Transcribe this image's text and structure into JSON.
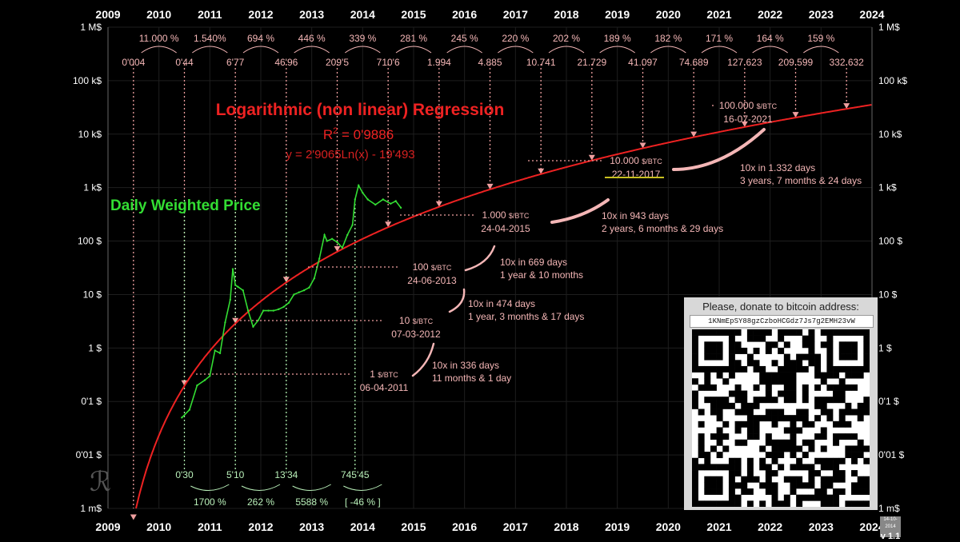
{
  "chart_data": {
    "type": "line",
    "xlim": [
      2009,
      2024
    ],
    "ylim_log10": [
      -3,
      6
    ],
    "log_scale_y": true,
    "grid": true,
    "x_tick_labels": [
      "2009",
      "2010",
      "2011",
      "2012",
      "2013",
      "2014",
      "2015",
      "2016",
      "2017",
      "2018",
      "2019",
      "2020",
      "2021",
      "2022",
      "2023",
      "2024"
    ],
    "y_tick_labels": [
      "1 M$",
      "100 k$",
      "10 k$",
      "1 k$",
      "100 $",
      "10 $",
      "1 $",
      "0'1 $",
      "0'01 $",
      "1 m$"
    ],
    "title": "Logarithmic (non linear) Regression",
    "r_squared_label": "R² = 0'9886",
    "r_squared_prefix": "R",
    "r_squared_sup": "2",
    "r_squared_value": " = 0'9886",
    "formula": "y = 2'9065Ln(x) - 19'493",
    "series": [
      {
        "name": "Daily Weighted Price",
        "color": "#33dd33",
        "points": [
          [
            2010.45,
            0.05
          ],
          [
            2010.6,
            0.07
          ],
          [
            2010.75,
            0.2
          ],
          [
            2010.9,
            0.25
          ],
          [
            2011.0,
            0.3
          ],
          [
            2011.1,
            0.9
          ],
          [
            2011.2,
            0.8
          ],
          [
            2011.3,
            3
          ],
          [
            2011.4,
            8
          ],
          [
            2011.45,
            30
          ],
          [
            2011.5,
            15
          ],
          [
            2011.55,
            14
          ],
          [
            2011.65,
            12
          ],
          [
            2011.75,
            5
          ],
          [
            2011.85,
            2.5
          ],
          [
            2011.95,
            3.3
          ],
          [
            2012.05,
            5
          ],
          [
            2012.15,
            5
          ],
          [
            2012.25,
            5
          ],
          [
            2012.35,
            5.3
          ],
          [
            2012.45,
            5.9
          ],
          [
            2012.55,
            7
          ],
          [
            2012.65,
            10
          ],
          [
            2012.75,
            11
          ],
          [
            2012.85,
            12
          ],
          [
            2012.95,
            13.5
          ],
          [
            2013.05,
            20
          ],
          [
            2013.15,
            47
          ],
          [
            2013.25,
            130
          ],
          [
            2013.3,
            100
          ],
          [
            2013.4,
            110
          ],
          [
            2013.5,
            95
          ],
          [
            2013.6,
            75
          ],
          [
            2013.7,
            130
          ],
          [
            2013.8,
            200
          ],
          [
            2013.85,
            600
          ],
          [
            2013.92,
            1100
          ],
          [
            2014.0,
            800
          ],
          [
            2014.1,
            600
          ],
          [
            2014.25,
            480
          ],
          [
            2014.4,
            600
          ],
          [
            2014.55,
            500
          ],
          [
            2014.65,
            560
          ],
          [
            2014.75,
            420
          ]
        ]
      },
      {
        "name": "Logarithmic regression",
        "color": "#ee2222"
      }
    ]
  },
  "top_growth": {
    "percentages": [
      "11.000 %",
      "1.540%",
      "694 %",
      "446 %",
      "339 %",
      "281 %",
      "245 %",
      "220 %",
      "202 %",
      "189 %",
      "182 %",
      "171 %",
      "164 %",
      "159 %"
    ],
    "values": [
      "0'004",
      "0'44",
      "6'77",
      "46'96",
      "209'5",
      "710'6",
      "1.994",
      "4.885",
      "10.741",
      "21.729",
      "41.097",
      "74.689",
      "127.623",
      "209.599",
      "332.632"
    ]
  },
  "bottom_growth": {
    "values": [
      "0'30",
      "5'10",
      "13'34",
      "745'45"
    ],
    "percentages": [
      "1700 %",
      "262 %",
      "5588 %",
      "[ -46 % ]"
    ]
  },
  "series_label": "Daily Weighted Price",
  "milestones": [
    {
      "price_num": "1",
      "unit": "$/BTC",
      "date": "06-04-2011"
    },
    {
      "price_num": "10",
      "unit": "$/BTC",
      "date": "07-03-2012"
    },
    {
      "price_num": "100",
      "unit": "$/BTC",
      "date": "24-06-2013"
    },
    {
      "price_num": "1.000",
      "unit": "$/BTC",
      "date": "24-04-2015"
    },
    {
      "price_num": "10.000",
      "unit": "$/BTC",
      "date": "22-11-2017"
    },
    {
      "price_num": "100.000",
      "unit": "$/BTC",
      "date": "16-07-2021"
    }
  ],
  "intervals": [
    {
      "days": "10x in 336 days",
      "detail": "11 months & 1 day"
    },
    {
      "days": "10x in 474 days",
      "detail": "1 year, 3 months & 17 days"
    },
    {
      "days": "10x in 669 days",
      "detail": "1 year & 10 months"
    },
    {
      "days": "10x in 943 days",
      "detail": "2 years, 6 months & 29 days"
    },
    {
      "days": "10x  in 1.332 days",
      "detail": "3 years, 7 months & 24 days"
    }
  ],
  "donation": {
    "title": "Please, donate to bitcoin address:",
    "address": "1KNmEpSY88gzCzboHCGdz7Js7g2EMH23vW"
  },
  "version": {
    "date": "14-10-2014",
    "label": "v 1.1"
  },
  "logo": "ℛ",
  "colors": {
    "background": "#000000",
    "regression": "#ee2222",
    "price": "#33dd33",
    "annotation": "#f4b6b6",
    "grid_pink": "#f0a0a0",
    "grid_green": "#b0f0b0"
  }
}
